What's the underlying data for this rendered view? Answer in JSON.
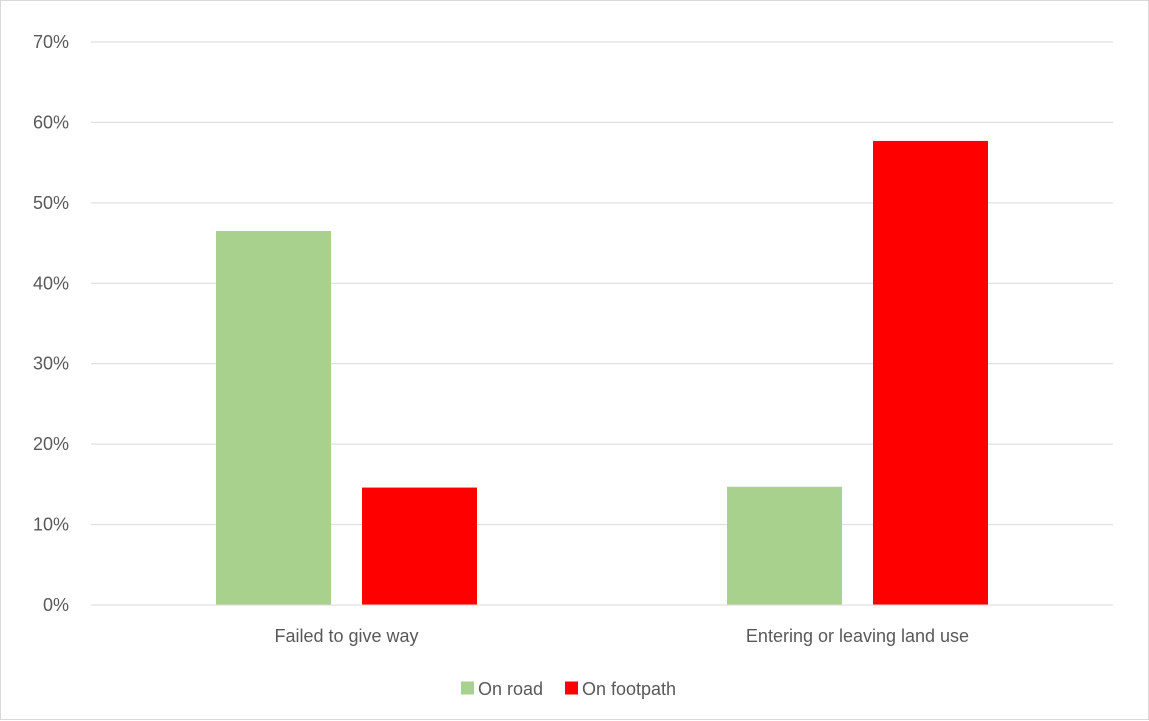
{
  "chart_data": {
    "type": "bar",
    "title": "",
    "xlabel": "",
    "ylabel": "",
    "categories": [
      "Failed to give way",
      "Entering or leaving land use"
    ],
    "series": [
      {
        "name": "On road",
        "values": [
          46.5,
          14.7
        ],
        "color": "#a9d18e"
      },
      {
        "name": "On footpath",
        "values": [
          14.6,
          57.7
        ],
        "color": "#ff0000"
      }
    ],
    "ylim": [
      0,
      70
    ],
    "yticks": [
      0,
      10,
      20,
      30,
      40,
      50,
      60,
      70
    ],
    "ytick_labels": [
      "0%",
      "10%",
      "20%",
      "30%",
      "40%",
      "50%",
      "60%",
      "70%"
    ],
    "grid": true,
    "gridline_color": "#d9d9d9",
    "legend_position": "bottom"
  }
}
